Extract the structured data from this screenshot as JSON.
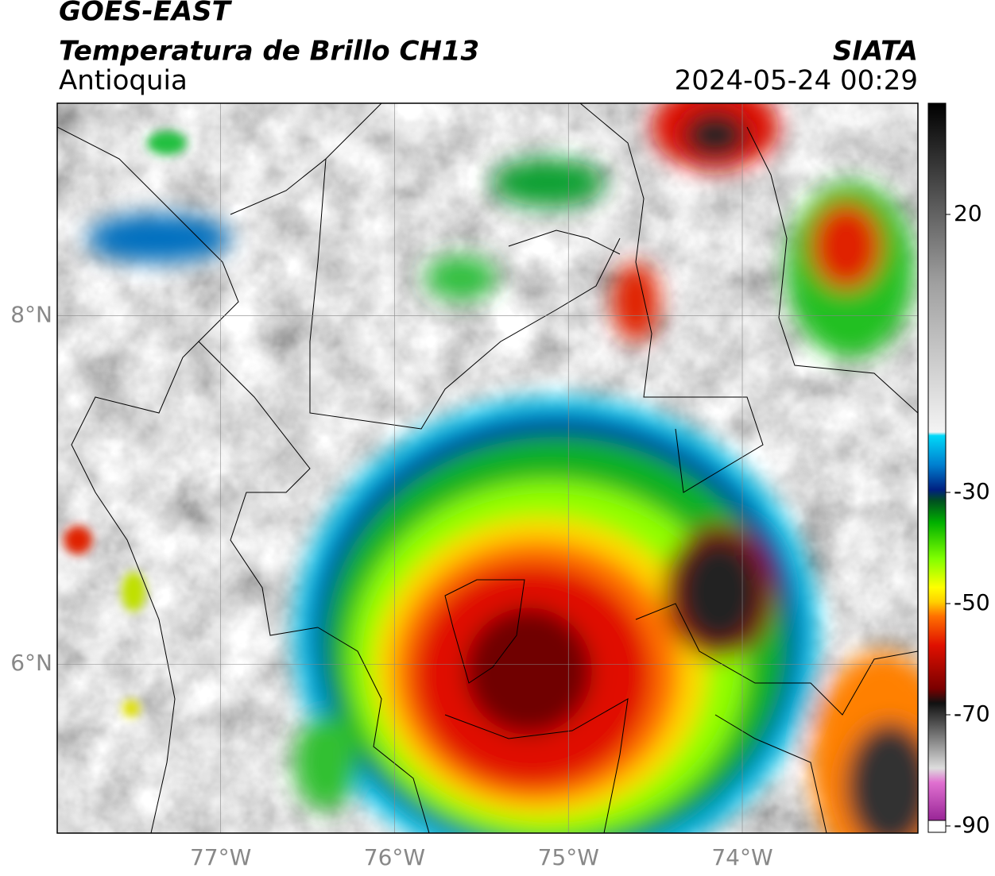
{
  "header": {
    "title": "GOES-EAST",
    "subtitle": "Temperatura de Brillo CH13",
    "region": "Antioquia",
    "source": "SIATA",
    "timestamp": "2024-05-24 00:29"
  },
  "map": {
    "xlim": [
      -77.94,
      -72.99
    ],
    "ylim": [
      5.03,
      9.22
    ],
    "xticks": [
      {
        "value": -77,
        "label": "77°W"
      },
      {
        "value": -76,
        "label": "76°W"
      },
      {
        "value": -75,
        "label": "75°W"
      },
      {
        "value": -74,
        "label": "74°W"
      }
    ],
    "yticks": [
      {
        "value": 6,
        "label": "6°N"
      },
      {
        "value": 8,
        "label": "8°N"
      }
    ],
    "grid": true
  },
  "colorbar": {
    "lim": [
      -90,
      40
    ],
    "ticks": [
      20,
      -30,
      -50,
      -70,
      -90
    ]
  }
}
